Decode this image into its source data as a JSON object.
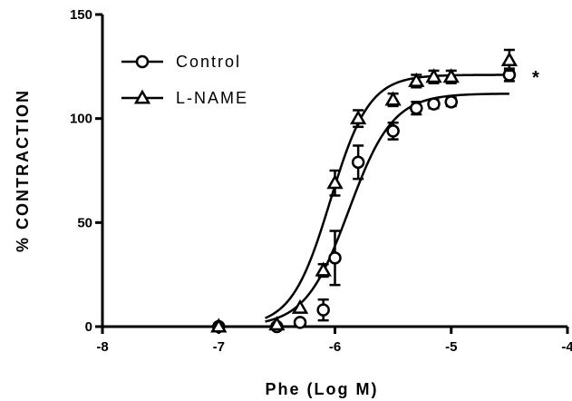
{
  "chart_data": {
    "type": "scatter",
    "xlabel": "Phe (Log M)",
    "ylabel": "% CONTRACTION",
    "xlim": [
      -8,
      -4
    ],
    "ylim": [
      0,
      150
    ],
    "x_ticks": [
      -8,
      -7,
      -6,
      -5,
      -4
    ],
    "y_ticks": [
      0,
      50,
      100,
      150
    ],
    "grid": false,
    "legend_position": "top-left",
    "annotation": "*",
    "series": [
      {
        "name": "Control",
        "marker": "circle",
        "x": [
          -7,
          -6.5,
          -6.3,
          -6.1,
          -6.0,
          -5.8,
          -5.5,
          -5.3,
          -5.15,
          -5.0,
          -4.5
        ],
        "y": [
          0,
          0,
          2,
          8,
          33,
          79,
          94,
          105,
          107,
          108,
          121
        ],
        "err": [
          0,
          0,
          0,
          5,
          13,
          8,
          4,
          3,
          2,
          2,
          3
        ],
        "fit": {
          "bottom": 0,
          "top": 112,
          "logEC50": -5.88,
          "hill": 2.3
        }
      },
      {
        "name": "L-NAME",
        "marker": "triangle",
        "x": [
          -7,
          -6.5,
          -6.3,
          -6.1,
          -6.0,
          -5.8,
          -5.5,
          -5.3,
          -5.15,
          -5.0,
          -4.5
        ],
        "y": [
          0,
          1,
          9,
          27,
          69,
          100,
          109,
          118,
          120,
          120,
          128
        ],
        "err": [
          0,
          0,
          0,
          3,
          6,
          4,
          3,
          3,
          3,
          3,
          5
        ],
        "fit": {
          "bottom": 0,
          "top": 121,
          "logEC50": -6.04,
          "hill": 2.6
        }
      }
    ],
    "colors": {
      "line": "#000000",
      "marker_fill": "#ffffff"
    }
  }
}
